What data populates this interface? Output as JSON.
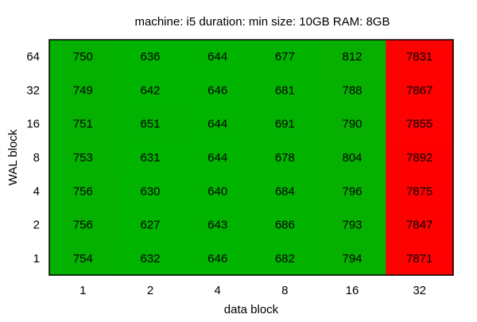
{
  "chart_data": {
    "type": "heatmap",
    "title": "machine: i5  duration: min  size: 10GB  RAM: 8GB",
    "xlabel": "data block",
    "ylabel": "WAL block",
    "x_categories": [
      "1",
      "2",
      "4",
      "8",
      "16",
      "32"
    ],
    "y_categories": [
      "64",
      "32",
      "16",
      "8",
      "4",
      "2",
      "1"
    ],
    "values": [
      [
        750,
        636,
        644,
        677,
        812,
        7831
      ],
      [
        749,
        642,
        646,
        681,
        788,
        7867
      ],
      [
        751,
        651,
        644,
        691,
        790,
        7855
      ],
      [
        753,
        631,
        644,
        678,
        804,
        7892
      ],
      [
        756,
        630,
        640,
        684,
        796,
        7875
      ],
      [
        756,
        627,
        643,
        686,
        793,
        7847
      ],
      [
        754,
        632,
        646,
        682,
        794,
        7871
      ]
    ],
    "colors": {
      "low": "#00b400",
      "high": "#ff0000",
      "border": "#000000"
    },
    "grid": false,
    "legend": "none"
  }
}
